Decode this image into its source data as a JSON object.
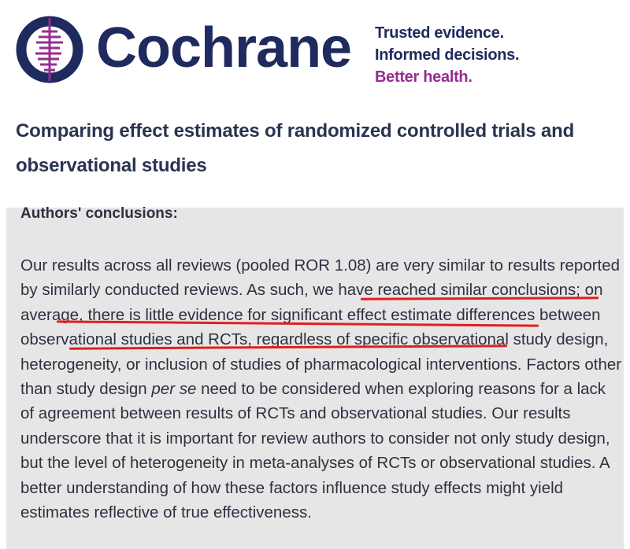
{
  "brand": {
    "name": "Cochrane",
    "tagline": [
      "Trusted evidence.",
      "Informed decisions.",
      "Better health."
    ],
    "colors": {
      "navy": "#1f2a5e",
      "purple": "#962d91"
    }
  },
  "article": {
    "title": "Comparing effect estimates of randomized controlled trials and observational studies"
  },
  "section": {
    "heading": "Authors' conclusions:",
    "body_before_em": "Our results across all reviews (pooled ROR 1.08) are very similar to results reported by similarly conducted reviews. As such, we have reached similar conclusions; on average, there is little evidence for significant effect estimate differences between observational studies and RCTs, regardless of specific observational study design, heterogeneity, or inclusion of studies of pharmacological interventions. Factors other than study design ",
    "body_em": "per se",
    "body_after_em": " need to be considered when exploring reasons for a lack of agreement between results of RCTs and observational studies. Our results underscore that it is important for review authors to consider not only study design, but the level of heterogeneity in meta-analyses of RCTs or observational studies. A better understanding of how these factors influence study effects might yield estimates reflective of true effectiveness."
  },
  "annotation": {
    "underline_color": "#e01f1f"
  }
}
